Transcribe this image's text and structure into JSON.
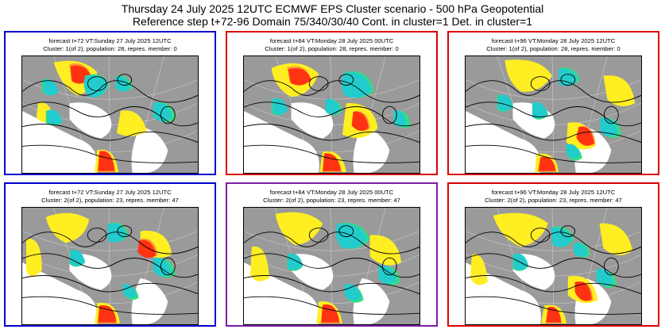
{
  "header": {
    "line1": "Thursday 24 July 2025 12UTC ECMWF EPS Cluster scenario - 500 hPa Geopotential",
    "line2": "Reference step t+72-96 Domain 75/340/30/40 Cont. in cluster=1 Det. in cluster=1"
  },
  "colors": {
    "frame_blue": "#0000cc",
    "frame_red": "#dd0000",
    "frame_purple": "#7a1fa2",
    "land": "#9a9a9a",
    "sea": "#ffffff",
    "anomaly_neg_weak": "#33dd88",
    "anomaly_neg_strong": "#22cccc",
    "anomaly_pos_weak": "#ffee22",
    "anomaly_pos_mid": "#ff9933",
    "anomaly_pos_strong": "#ff3311"
  },
  "panels": [
    {
      "id": "p1",
      "frame": "blue",
      "line1": "forecast t+72 VT:Sunday 27 July 2025 12UTC",
      "line2": "Cluster: 1(of 2), population: 28, repres. member: 0"
    },
    {
      "id": "p2",
      "frame": "red",
      "line1": "forecast t+84 VT:Monday 28 July 2025 00UTC",
      "line2": "Cluster: 1(of 2), population: 28, repres. member: 0"
    },
    {
      "id": "p3",
      "frame": "red",
      "line1": "forecast t+96 VT:Monday 28 July 2025 12UTC",
      "line2": "Cluster: 1(of 2), population: 28, repres. member: 0"
    },
    {
      "id": "p4",
      "frame": "blue",
      "line1": "forecast t+72 VT:Sunday 27 July 2025 12UTC",
      "line2": "Cluster: 2(of 2), population: 23, repres. member: 47"
    },
    {
      "id": "p5",
      "frame": "purple",
      "line1": "forecast t+84 VT:Monday 28 July 2025 00UTC",
      "line2": "Cluster: 2(of 2), population: 23, repres. member: 47"
    },
    {
      "id": "p6",
      "frame": "red",
      "line1": "forecast t+96 VT:Monday 28 July 2025 12UTC",
      "line2": "Cluster: 2(of 2), population: 23, repres. member: 47"
    }
  ]
}
